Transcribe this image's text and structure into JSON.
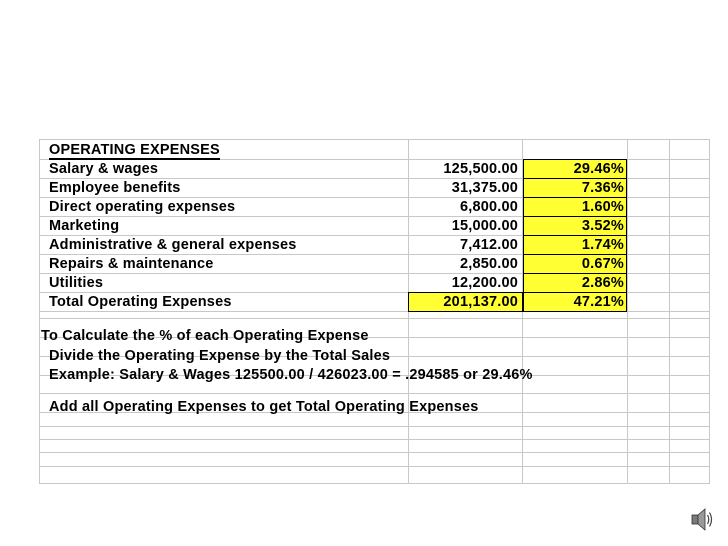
{
  "heading": "OPERATING EXPENSES",
  "rows": [
    {
      "label": "Salary & wages",
      "amount": "125,500.00",
      "percent": "29.46%"
    },
    {
      "label": "Employee benefits",
      "amount": "31,375.00",
      "percent": "7.36%"
    },
    {
      "label": "Direct operating expenses",
      "amount": "6,800.00",
      "percent": "1.60%"
    },
    {
      "label": "Marketing",
      "amount": "15,000.00",
      "percent": "3.52%"
    },
    {
      "label": "Administrative & general expenses",
      "amount": "7,412.00",
      "percent": "1.74%"
    },
    {
      "label": "Repairs & maintenance",
      "amount": "2,850.00",
      "percent": "0.67%"
    },
    {
      "label": "Utilities",
      "amount": "12,200.00",
      "percent": "2.86%"
    },
    {
      "label": "Total Operating Expenses",
      "amount": "201,137.00",
      "percent": "47.21%"
    }
  ],
  "notes": {
    "title": "To Calculate the % of each Operating Expense",
    "line1": "Divide the Operating Expense by the Total Sales",
    "line2": "Example: Salary & Wages 125500.00 / 426023.00 = .294585 or 29.46%",
    "line3": "Add all Operating Expenses to get Total Operating Expenses"
  },
  "colors": {
    "highlight": "#ffff33",
    "grid": "#c8c8c8"
  },
  "icons": {
    "audio": "speaker-icon"
  }
}
